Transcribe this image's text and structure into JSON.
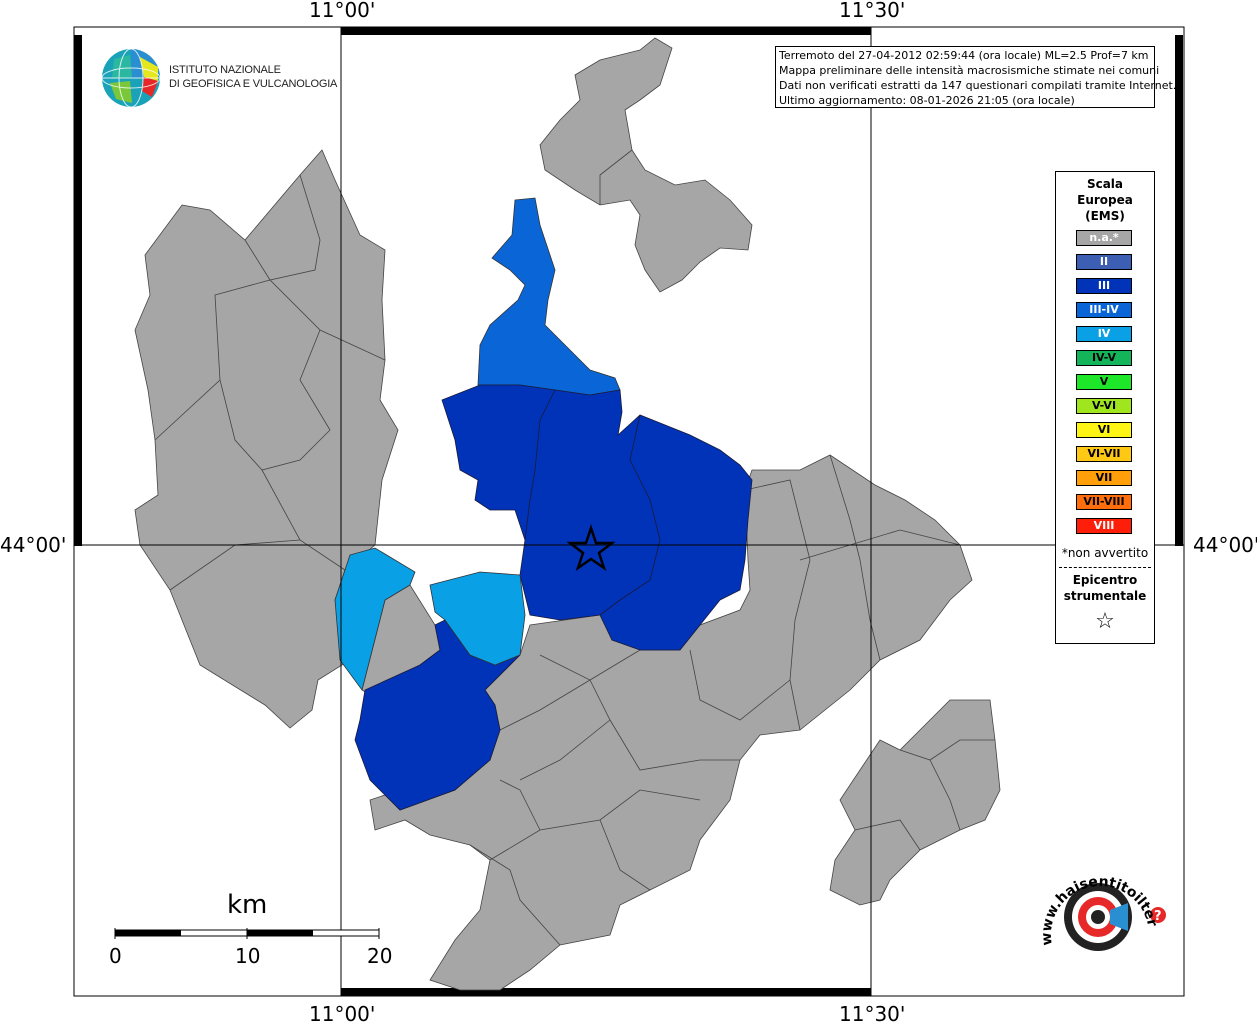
{
  "coords": {
    "top_left_lon": "11°00'",
    "top_right_lon": "11°30'",
    "bottom_left_lon": "11°00'",
    "bottom_right_lon": "11°30'",
    "left_lat": "44°00'",
    "right_lat": "44°00'"
  },
  "logo": {
    "line1": "ISTITUTO NAZIONALE",
    "line2": "DI GEOFISICA E VULCANOLOGIA"
  },
  "info": {
    "line1": "Terremoto del 27-04-2012 02:59:44 (ora locale) ML=2.5 Prof=7 km",
    "line2": "Mappa preliminare delle intensità macrosismiche stimate nei comuni",
    "line3": "Dati non verificati estratti da 147 questionari compilati tramite Internet.",
    "line4": "Ultimo aggiornamento: 08-01-2026 21:05 (ora locale)"
  },
  "legend": {
    "title1": "Scala",
    "title2": "Europea",
    "title3": "(EMS)",
    "items": [
      {
        "label": "n.a.*",
        "color": "#a6a6a6",
        "text_color": "#ffffff"
      },
      {
        "label": "II",
        "color": "#3c5fb4",
        "text_color": "#ffffff"
      },
      {
        "label": "III",
        "color": "#0033b8",
        "text_color": "#ffffff"
      },
      {
        "label": "III-IV",
        "color": "#0a66d6",
        "text_color": "#ffffff"
      },
      {
        "label": "IV",
        "color": "#0aa0e6",
        "text_color": "#ffffff"
      },
      {
        "label": "IV-V",
        "color": "#14b45a",
        "text_color": "#000000"
      },
      {
        "label": "V",
        "color": "#1ee628",
        "text_color": "#000000"
      },
      {
        "label": "V-VI",
        "color": "#a0e61e",
        "text_color": "#000000"
      },
      {
        "label": "VI",
        "color": "#fff514",
        "text_color": "#000000"
      },
      {
        "label": "VI-VII",
        "color": "#ffc814",
        "text_color": "#000000"
      },
      {
        "label": "VII",
        "color": "#ffa00a",
        "text_color": "#000000"
      },
      {
        "label": "VII-VIII",
        "color": "#ff6e0a",
        "text_color": "#000000"
      },
      {
        "label": "VIII",
        "color": "#ff1e0a",
        "text_color": "#ffffff"
      }
    ],
    "note": "*non avvertito",
    "epicentre1": "Epicentro",
    "epicentre2": "strumentale",
    "epicentre_symbol": "☆"
  },
  "scale": {
    "unit": "km",
    "tick0": "0",
    "tick10": "10",
    "tick20": "20"
  },
  "hst": {
    "text": "www.haisentitoilterremoto.it"
  },
  "map_colors": {
    "na": "#a6a6a6",
    "III": "#0033b8",
    "III_IV": "#0a66d6",
    "IV": "#0aa0e6"
  }
}
